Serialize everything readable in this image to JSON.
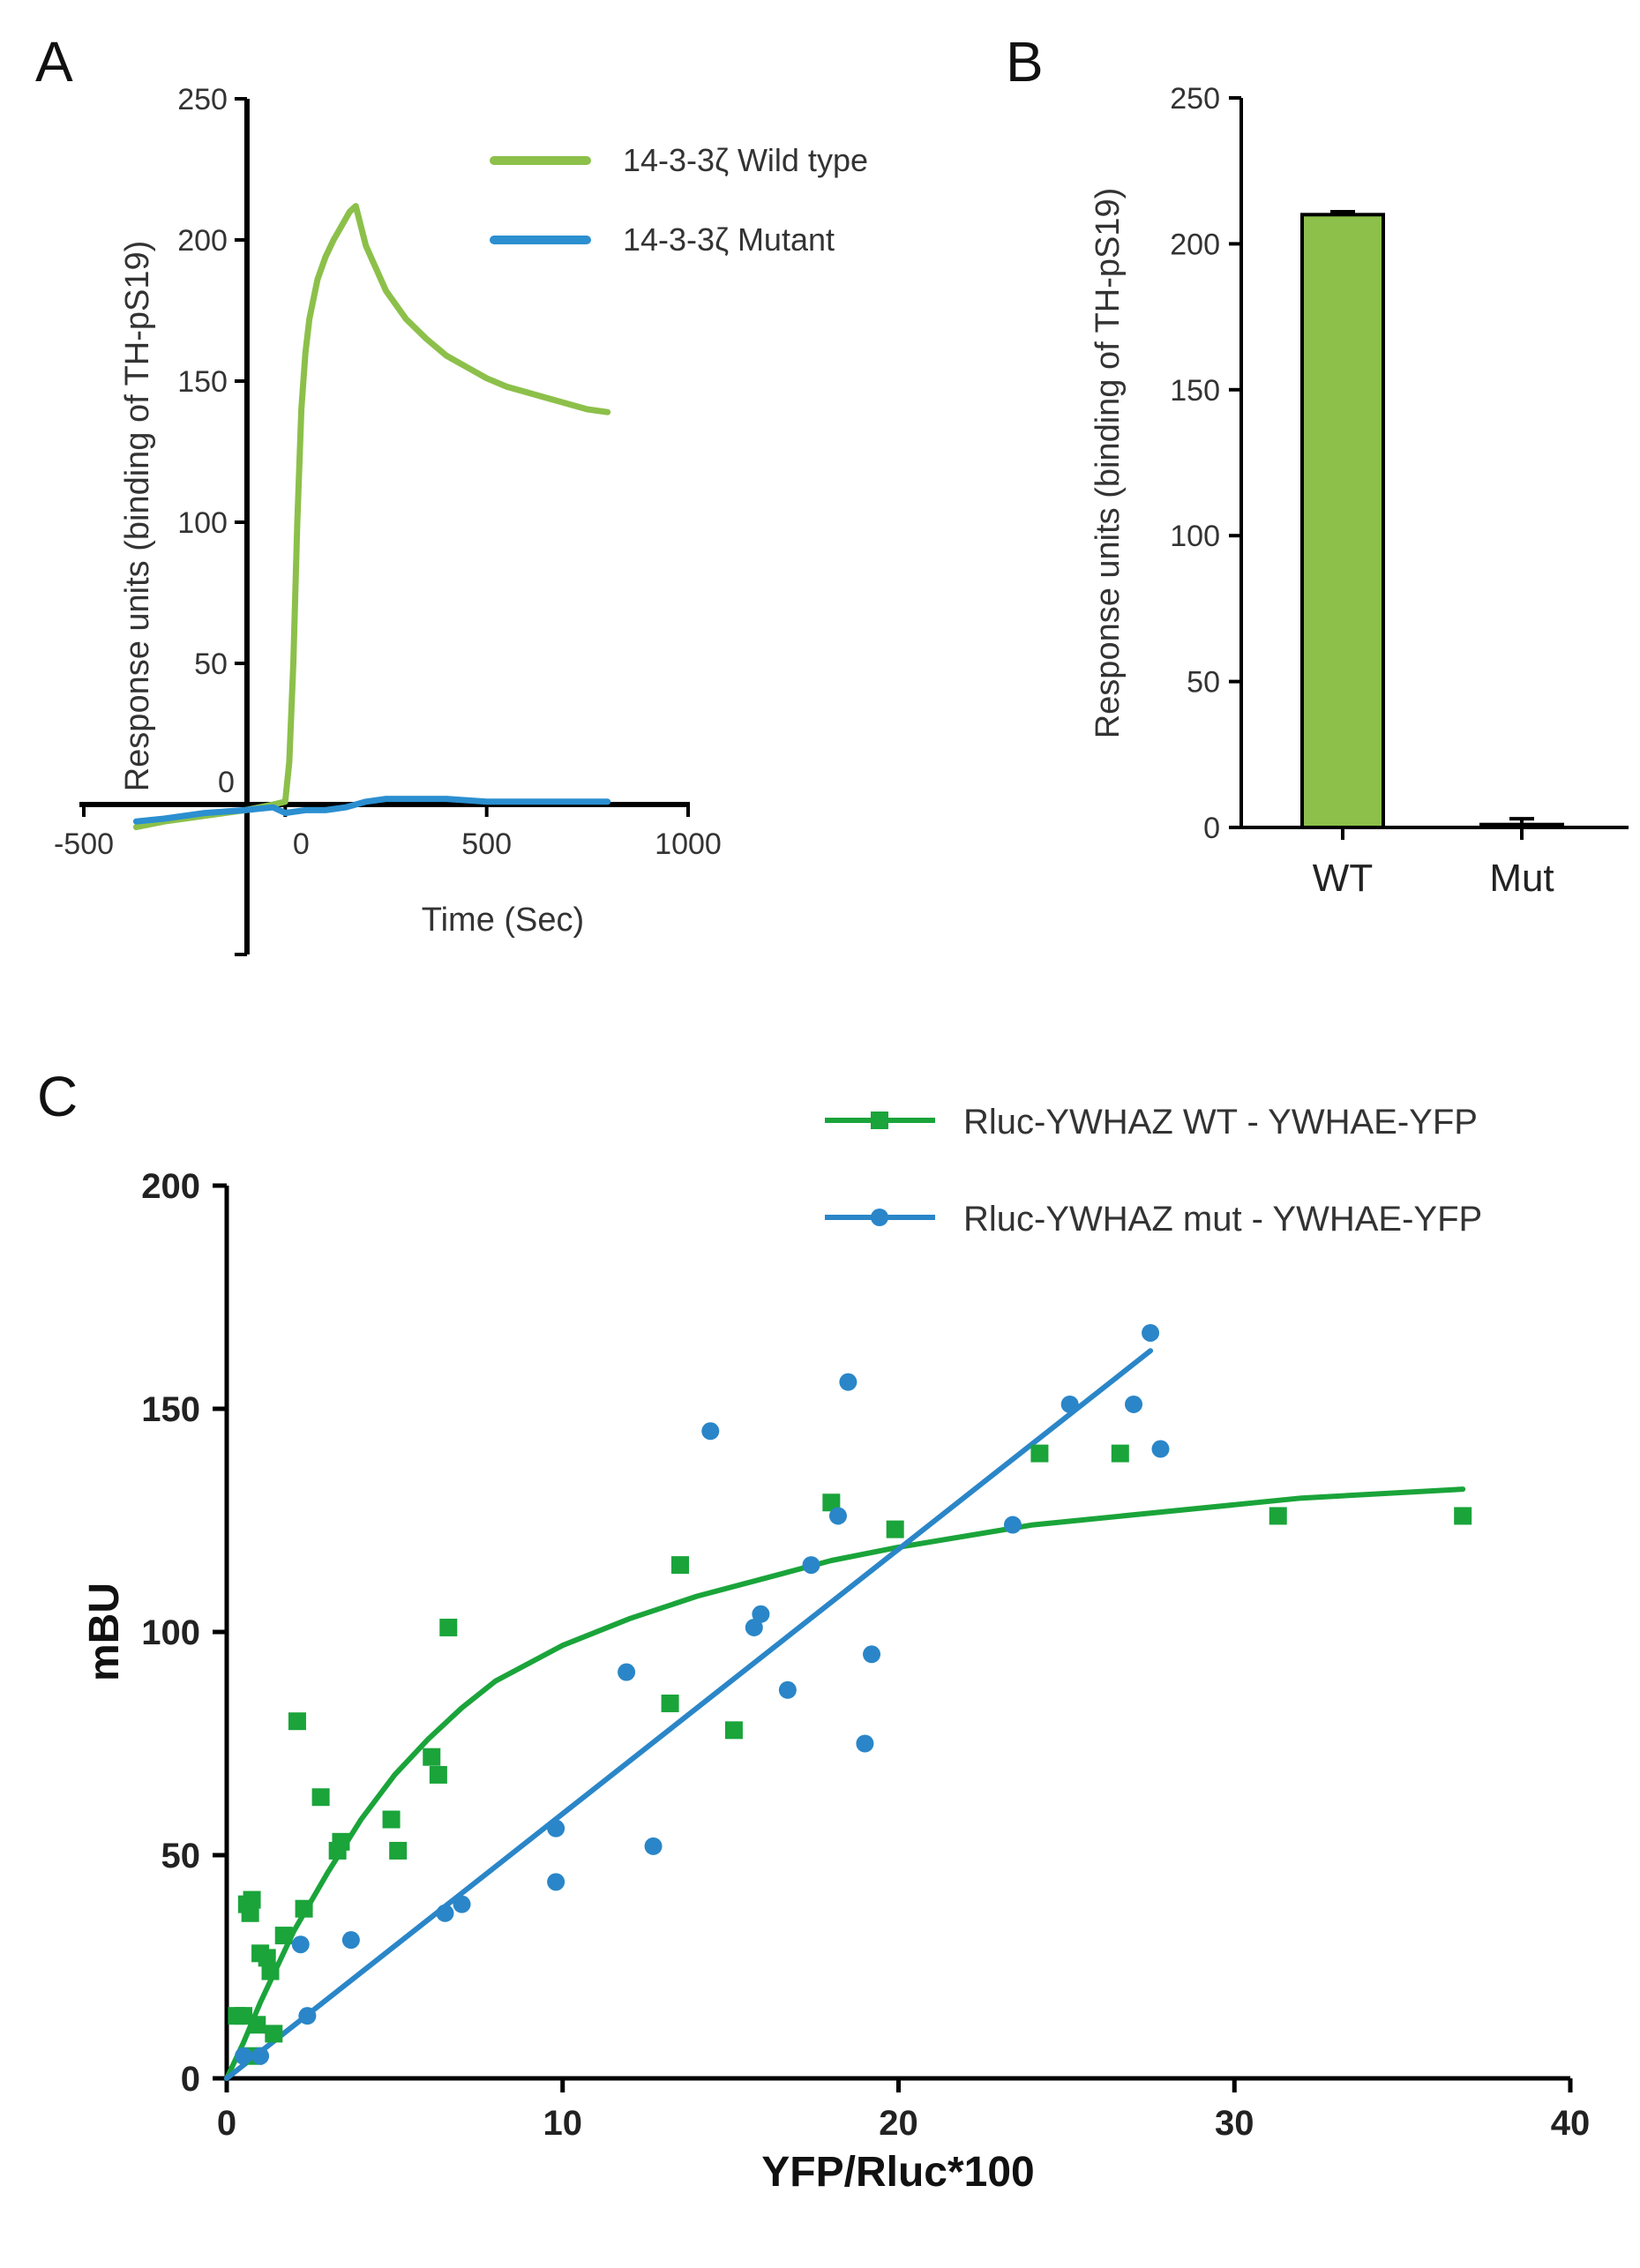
{
  "chart_data": [
    {
      "panel": "A",
      "type": "line",
      "title": "",
      "xlabel": "Time (Sec)",
      "ylabel": "Response units (binding of TH-pS19)",
      "xlim": [
        -500,
        1000
      ],
      "ylim": [
        -50,
        250
      ],
      "xticks": [
        -500,
        0,
        500,
        1000
      ],
      "yticks": [
        0,
        50,
        100,
        150,
        200,
        250
      ],
      "xtick_labels": [
        "-500",
        "0",
        "500",
        "1000"
      ],
      "ytick_labels": [
        "0",
        "50",
        "100",
        "150",
        "200",
        "250"
      ],
      "legend_position": "top-right",
      "series": [
        {
          "name": "14-3-3ζ Wild type",
          "color": "#8cc04a",
          "x": [
            -370,
            -300,
            -200,
            -100,
            -30,
            0,
            10,
            20,
            30,
            40,
            50,
            60,
            80,
            100,
            120,
            140,
            160,
            175,
            200,
            250,
            300,
            350,
            400,
            450,
            500,
            550,
            600,
            650,
            700,
            750,
            800
          ],
          "y": [
            -8,
            -6,
            -4,
            -2,
            0,
            1,
            15,
            50,
            100,
            140,
            160,
            172,
            186,
            194,
            200,
            205,
            210,
            212,
            198,
            182,
            172,
            165,
            159,
            155,
            151,
            148,
            146,
            144,
            142,
            140,
            139
          ]
        },
        {
          "name": "14-3-3ζ Mutant",
          "color": "#2b8fd0",
          "x": [
            -370,
            -300,
            -200,
            -100,
            -30,
            0,
            50,
            100,
            150,
            200,
            250,
            300,
            400,
            500,
            600,
            700,
            800
          ],
          "y": [
            -6,
            -5,
            -3,
            -2,
            -1,
            -3,
            -2,
            -2,
            -1,
            1,
            2,
            2,
            2,
            1,
            1,
            1,
            1
          ]
        }
      ]
    },
    {
      "panel": "B",
      "type": "bar",
      "title": "",
      "xlabel": "",
      "ylabel": "Response units (binding of TH-pS19)",
      "ylim": [
        0,
        250
      ],
      "yticks": [
        0,
        50,
        100,
        150,
        200,
        250
      ],
      "ytick_labels": [
        "0",
        "50",
        "100",
        "150",
        "200",
        "250"
      ],
      "categories": [
        "WT",
        "Mut"
      ],
      "values": [
        210,
        1
      ],
      "errors": [
        1,
        2
      ],
      "colors": [
        "#8cc04a",
        "#8cc04a"
      ]
    },
    {
      "panel": "C",
      "type": "scatter",
      "title": "",
      "xlabel": "YFP/Rluc*100",
      "ylabel": "mBU",
      "xlim": [
        0,
        40
      ],
      "ylim": [
        0,
        200
      ],
      "xticks": [
        0,
        10,
        20,
        30,
        40
      ],
      "yticks": [
        0,
        50,
        100,
        150,
        200
      ],
      "xtick_labels": [
        "0",
        "10",
        "20",
        "30",
        "40"
      ],
      "ytick_labels": [
        "0",
        "50",
        "100",
        "150",
        "200"
      ],
      "legend_position": "top-right",
      "series": [
        {
          "name": "Rluc-YWHAZ WT - YWHAE-YFP",
          "color": "#1aa43a",
          "marker": "square",
          "points": [
            [
              0.3,
              14
            ],
            [
              0.5,
              14
            ],
            [
              0.6,
              39
            ],
            [
              0.7,
              37
            ],
            [
              0.75,
              40
            ],
            [
              0.8,
              5
            ],
            [
              0.9,
              12
            ],
            [
              1.0,
              28
            ],
            [
              1.2,
              27
            ],
            [
              1.3,
              24
            ],
            [
              1.4,
              10
            ],
            [
              1.7,
              32
            ],
            [
              2.1,
              80
            ],
            [
              2.3,
              38
            ],
            [
              2.8,
              63
            ],
            [
              3.3,
              51
            ],
            [
              3.4,
              53
            ],
            [
              4.9,
              58
            ],
            [
              5.1,
              51
            ],
            [
              6.1,
              72
            ],
            [
              6.3,
              68
            ],
            [
              6.6,
              101
            ],
            [
              13.2,
              84
            ],
            [
              13.5,
              115
            ],
            [
              15.1,
              78
            ],
            [
              18.0,
              129
            ],
            [
              19.9,
              123
            ],
            [
              24.2,
              140
            ],
            [
              26.6,
              140
            ],
            [
              31.3,
              126
            ],
            [
              36.8,
              126
            ]
          ],
          "fit": {
            "kind": "saturation",
            "x": [
              0,
              0.5,
              1,
              1.5,
              2,
              3,
              4,
              5,
              6,
              7,
              8,
              10,
              12,
              14,
              16,
              18,
              20,
              24,
              28,
              32,
              36.8
            ],
            "y": [
              0,
              8,
              17,
              25,
              33,
              46,
              58,
              68,
              76,
              83,
              89,
              97,
              103,
              108,
              112,
              116,
              119,
              124,
              127,
              130,
              132
            ]
          }
        },
        {
          "name": "Rluc-YWHAZ mut - YWHAE-YFP",
          "color": "#2a86c8",
          "marker": "circle",
          "points": [
            [
              0.5,
              5
            ],
            [
              1.0,
              5
            ],
            [
              2.2,
              30
            ],
            [
              2.4,
              14
            ],
            [
              3.7,
              31
            ],
            [
              6.5,
              37
            ],
            [
              7.0,
              39
            ],
            [
              9.8,
              56
            ],
            [
              9.8,
              44
            ],
            [
              11.9,
              91
            ],
            [
              12.7,
              52
            ],
            [
              14.4,
              145
            ],
            [
              15.7,
              101
            ],
            [
              15.9,
              104
            ],
            [
              16.7,
              87
            ],
            [
              17.4,
              115
            ],
            [
              18.2,
              126
            ],
            [
              18.5,
              156
            ],
            [
              19.0,
              75
            ],
            [
              19.2,
              95
            ],
            [
              23.4,
              124
            ],
            [
              25.1,
              151
            ],
            [
              27.0,
              151
            ],
            [
              27.5,
              167
            ],
            [
              27.8,
              141
            ]
          ],
          "fit": {
            "kind": "linear",
            "x": [
              0,
              27.5
            ],
            "y": [
              0,
              163
            ]
          }
        }
      ]
    }
  ],
  "panels": {
    "a_label": "A",
    "b_label": "B",
    "c_label": "C"
  }
}
